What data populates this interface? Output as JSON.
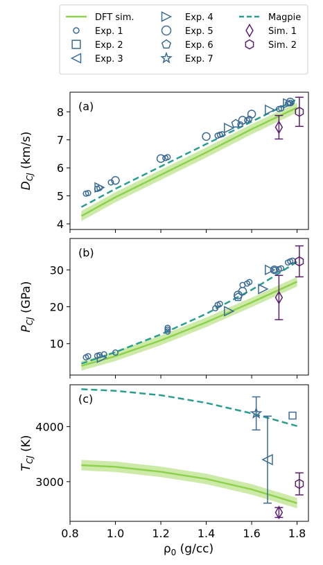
{
  "colors": {
    "dft": "#8fd14f",
    "dft_band": "#cdeaa8",
    "magpie": "#2a9d8f",
    "exp": "#3b6a94",
    "sim": "#5a1f6e"
  },
  "legend": {
    "entries": [
      {
        "label": "DFT sim.",
        "marker": "line",
        "color": "#8fd14f"
      },
      {
        "label": "Exp. 1",
        "marker": "small-circle",
        "color": "#3b6a94"
      },
      {
        "label": "Exp. 2",
        "marker": "square",
        "color": "#3b6a94"
      },
      {
        "label": "Exp. 3",
        "marker": "triangle-left",
        "color": "#3b6a94"
      },
      {
        "label": "Exp. 4",
        "marker": "triangle-right",
        "color": "#3b6a94"
      },
      {
        "label": "Exp. 5",
        "marker": "circle",
        "color": "#3b6a94"
      },
      {
        "label": "Exp. 6",
        "marker": "pentagon",
        "color": "#3b6a94"
      },
      {
        "label": "Exp. 7",
        "marker": "star",
        "color": "#3b6a94"
      },
      {
        "label": "Magpie",
        "marker": "dashed-line",
        "color": "#2a9d8f"
      },
      {
        "label": "Sim. 1",
        "marker": "diamond",
        "color": "#5a1f6e"
      },
      {
        "label": "Sim. 2",
        "marker": "hexagon",
        "color": "#5a1f6e"
      }
    ]
  },
  "chart_data": [
    {
      "type": "line",
      "panel_label": "(a)",
      "ylabel_main": "D",
      "ylabel_sub": "CJ",
      "ylabel_unit": " (km/s)",
      "xlim": [
        0.8,
        1.85
      ],
      "ylim": [
        3.8,
        8.7
      ],
      "yticks": [
        4,
        5,
        6,
        7,
        8
      ],
      "dft": {
        "x": [
          0.85,
          1.0,
          1.2,
          1.4,
          1.6,
          1.8
        ],
        "y": [
          4.28,
          4.95,
          5.75,
          6.55,
          7.38,
          8.15
        ],
        "band": 0.18
      },
      "magpie": {
        "x": [
          0.85,
          1.0,
          1.2,
          1.4,
          1.6,
          1.8
        ],
        "y": [
          4.6,
          5.25,
          6.05,
          6.85,
          7.65,
          8.45
        ]
      },
      "exp1": {
        "x": [
          0.87,
          0.88,
          0.92,
          0.93,
          0.98,
          1.22,
          1.23,
          1.45,
          1.46,
          1.47,
          1.55,
          1.58,
          1.59,
          1.72,
          1.73,
          1.76,
          1.77
        ],
        "y": [
          5.08,
          5.1,
          5.25,
          5.28,
          5.48,
          6.35,
          6.38,
          7.15,
          7.18,
          7.2,
          7.55,
          7.7,
          7.75,
          8.1,
          8.12,
          8.3,
          8.32
        ]
      },
      "exp5": {
        "x": [
          1.0,
          1.2,
          1.4,
          1.56,
          1.6,
          1.77
        ],
        "y": [
          5.55,
          6.33,
          7.12,
          7.7,
          7.92,
          8.35
        ]
      },
      "exp6": {
        "x": [
          1.53
        ],
        "y": [
          7.58
        ]
      },
      "exp4": {
        "x": [
          0.93,
          1.5,
          1.68,
          1.76
        ],
        "y": [
          5.3,
          7.42,
          8.07,
          8.3
        ]
      },
      "sim1": {
        "x": [
          1.72
        ],
        "y": [
          7.45
        ],
        "err": 0.42
      },
      "sim2": {
        "x": [
          1.81
        ],
        "y": [
          8.0
        ],
        "err": 0.52
      }
    },
    {
      "type": "line",
      "panel_label": "(b)",
      "ylabel_main": "P",
      "ylabel_sub": "CJ",
      "ylabel_unit": " (GPa)",
      "xlim": [
        0.8,
        1.85
      ],
      "ylim": [
        1.5,
        38.5
      ],
      "yticks": [
        10,
        20,
        30
      ],
      "dft": {
        "x": [
          0.85,
          1.0,
          1.2,
          1.4,
          1.6,
          1.8
        ],
        "y": [
          4.0,
          6.6,
          10.9,
          15.8,
          21.2,
          26.8
        ],
        "band": 1.3
      },
      "magpie": {
        "x": [
          0.85,
          1.0,
          1.2,
          1.4,
          1.6,
          1.7,
          1.8
        ],
        "y": [
          4.6,
          7.7,
          12.5,
          18.1,
          24.6,
          28.3,
          32.2
        ]
      },
      "exp1": {
        "x": [
          0.87,
          0.88,
          0.92,
          0.93,
          0.95,
          1.0,
          1.23,
          1.23,
          1.23,
          1.44,
          1.45,
          1.46,
          1.56,
          1.58,
          1.59,
          1.7,
          1.72,
          1.73,
          1.76,
          1.77,
          1.78
        ],
        "y": [
          6.3,
          6.6,
          6.7,
          6.9,
          7.1,
          7.6,
          13.3,
          13.8,
          14.3,
          19.6,
          20.5,
          20.8,
          25.9,
          26.3,
          26.7,
          30.0,
          30.2,
          30.4,
          32.0,
          32.3,
          32.5
        ]
      },
      "exp5": {
        "x": [
          1.54,
          1.56,
          1.7
        ],
        "y": [
          23.2,
          24.2,
          30.0
        ]
      },
      "exp6": {
        "x": [
          1.54
        ],
        "y": [
          22.6
        ]
      },
      "exp4": {
        "x": [
          0.94,
          1.5,
          1.65,
          1.68
        ],
        "y": [
          6.2,
          18.8,
          24.8,
          30.0
        ]
      },
      "sim1": {
        "x": [
          1.72
        ],
        "y": [
          22.5
        ],
        "err": 6.0
      },
      "sim2": {
        "x": [
          1.81
        ],
        "y": [
          32.3
        ],
        "err": 4.2
      }
    },
    {
      "type": "line",
      "panel_label": "(c)",
      "ylabel_main": "T",
      "ylabel_sub": "CJ",
      "ylabel_unit": " (K)",
      "xlim": [
        0.8,
        1.85
      ],
      "ylim": [
        2280,
        4760
      ],
      "yticks": [
        3000,
        4000
      ],
      "dft": {
        "x": [
          0.85,
          1.0,
          1.2,
          1.4,
          1.6,
          1.8
        ],
        "y": [
          3300,
          3270,
          3180,
          3050,
          2860,
          2610
        ],
        "band": 95
      },
      "magpie": {
        "x": [
          0.85,
          1.0,
          1.2,
          1.4,
          1.6,
          1.8
        ],
        "y": [
          4680,
          4650,
          4570,
          4430,
          4240,
          4010
        ]
      },
      "exp2": {
        "x": [
          1.78
        ],
        "y": [
          4200
        ]
      },
      "exp3": {
        "x": [
          1.67
        ],
        "y": [
          3400
        ],
        "err": 790
      },
      "exp7": {
        "x": [
          1.62
        ],
        "y": [
          4240
        ],
        "err": 300
      },
      "sim1": {
        "x": [
          1.72
        ],
        "y": [
          2440
        ],
        "err": 90
      },
      "sim2": {
        "x": [
          1.81
        ],
        "y": [
          2960
        ],
        "err": 200
      }
    }
  ],
  "xaxis": {
    "ticks": [
      "0.8",
      "1.0",
      "1.2",
      "1.4",
      "1.6",
      "1.8"
    ],
    "label_main": "ρ",
    "label_sub": "0",
    "label_unit": " (g/cc)"
  }
}
